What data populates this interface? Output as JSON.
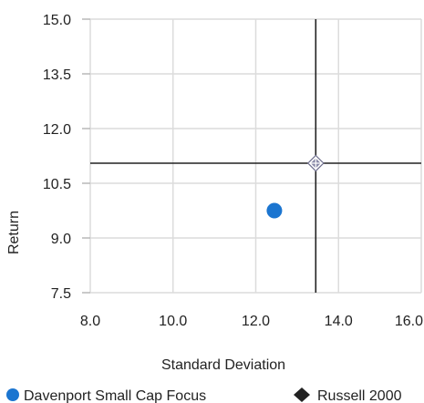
{
  "chart_data": {
    "type": "scatter",
    "title": "",
    "xlabel": "Standard Deviation",
    "ylabel": "Return",
    "xlim": [
      8.0,
      16.0
    ],
    "ylim": [
      7.5,
      15.0
    ],
    "xticks": [
      "8.0",
      "10.0",
      "12.0",
      "14.0",
      "16.0"
    ],
    "yticks": [
      "15.0",
      "13.5",
      "12.0",
      "10.5",
      "9.0",
      "7.5"
    ],
    "grid": true,
    "legend_position": "bottom",
    "series": [
      {
        "name": "Davenport Small Cap Focus",
        "marker": "circle",
        "color": "#1b75d0",
        "x": 12.45,
        "y": 9.75
      },
      {
        "name": "Russell 2000",
        "marker": "diamond",
        "color": "#222222",
        "x": 13.45,
        "y": 11.05
      }
    ],
    "crosshair": {
      "reference": "Russell 2000",
      "x": 13.45,
      "y": 11.05,
      "color": "#222222"
    }
  }
}
